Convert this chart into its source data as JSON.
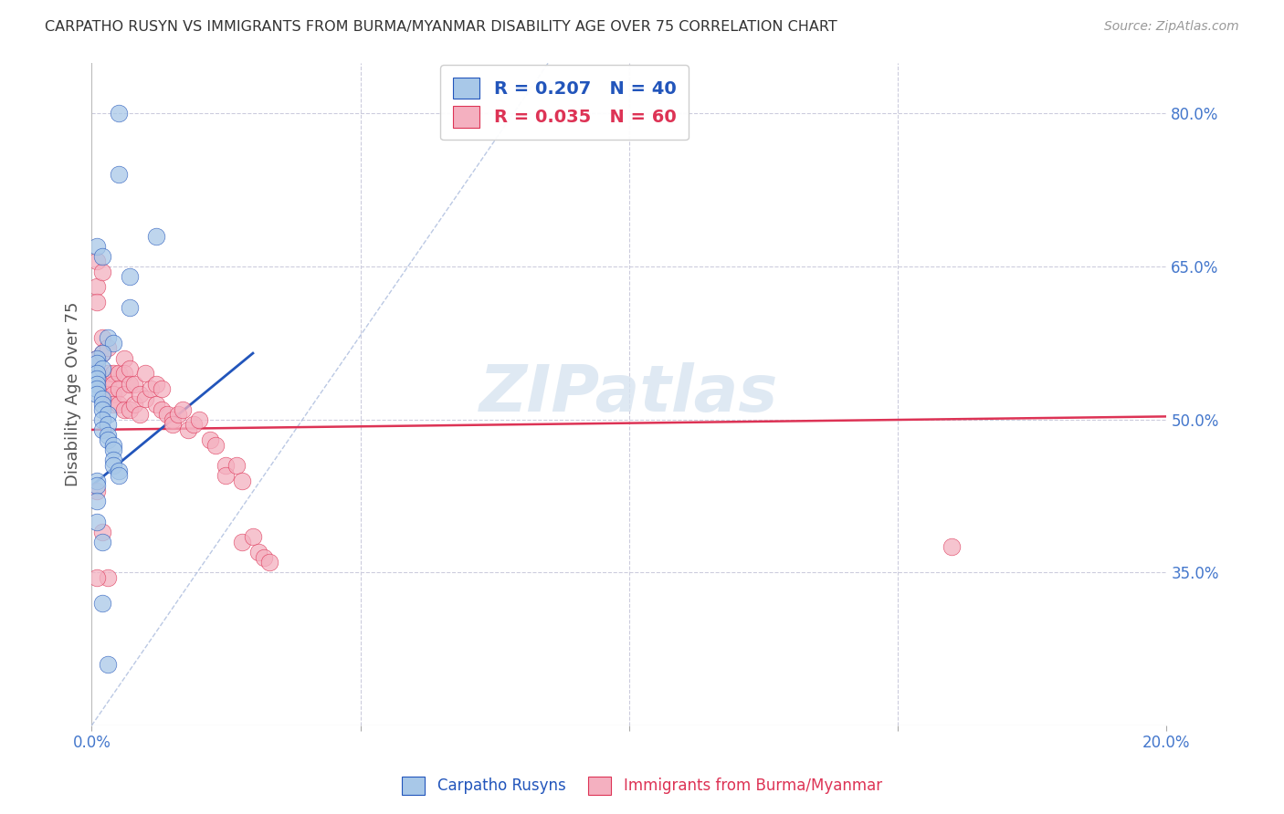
{
  "title": "CARPATHO RUSYN VS IMMIGRANTS FROM BURMA/MYANMAR DISABILITY AGE OVER 75 CORRELATION CHART",
  "source": "Source: ZipAtlas.com",
  "ylabel": "Disability Age Over 75",
  "xlim": [
    0.0,
    0.2
  ],
  "ylim": [
    0.2,
    0.85
  ],
  "yticks_right": [
    0.35,
    0.5,
    0.65,
    0.8
  ],
  "ytick_labels_right": [
    "35.0%",
    "50.0%",
    "65.0%",
    "80.0%"
  ],
  "legend_blue_r": "R = 0.207",
  "legend_blue_n": "N = 40",
  "legend_pink_r": "R = 0.035",
  "legend_pink_n": "N = 60",
  "legend_label_blue": "Carpatho Rusyns",
  "legend_label_pink": "Immigrants from Burma/Myanmar",
  "blue_scatter_color": "#a8c8e8",
  "pink_scatter_color": "#f4b0c0",
  "blue_line_color": "#2255bb",
  "pink_line_color": "#dd3355",
  "axis_color": "#4477cc",
  "title_color": "#333333",
  "background_color": "#ffffff",
  "grid_color": "#ccccdd",
  "watermark_color": "#d8e4f0",
  "scatter_blue_x": [
    0.005,
    0.005,
    0.012,
    0.001,
    0.002,
    0.007,
    0.007,
    0.003,
    0.004,
    0.002,
    0.001,
    0.001,
    0.002,
    0.001,
    0.001,
    0.001,
    0.001,
    0.001,
    0.002,
    0.002,
    0.002,
    0.003,
    0.002,
    0.003,
    0.002,
    0.003,
    0.003,
    0.004,
    0.004,
    0.004,
    0.004,
    0.005,
    0.005,
    0.001,
    0.001,
    0.001,
    0.001,
    0.002,
    0.002,
    0.003
  ],
  "scatter_blue_y": [
    0.8,
    0.74,
    0.68,
    0.67,
    0.66,
    0.64,
    0.61,
    0.58,
    0.575,
    0.565,
    0.56,
    0.555,
    0.55,
    0.545,
    0.54,
    0.535,
    0.53,
    0.525,
    0.52,
    0.515,
    0.51,
    0.505,
    0.5,
    0.495,
    0.49,
    0.485,
    0.48,
    0.475,
    0.47,
    0.46,
    0.455,
    0.45,
    0.445,
    0.44,
    0.435,
    0.42,
    0.4,
    0.38,
    0.32,
    0.26
  ],
  "scatter_pink_x": [
    0.001,
    0.001,
    0.001,
    0.001,
    0.002,
    0.002,
    0.002,
    0.003,
    0.003,
    0.003,
    0.003,
    0.004,
    0.004,
    0.004,
    0.004,
    0.005,
    0.005,
    0.005,
    0.006,
    0.006,
    0.006,
    0.006,
    0.007,
    0.007,
    0.007,
    0.008,
    0.008,
    0.009,
    0.009,
    0.01,
    0.01,
    0.011,
    0.012,
    0.012,
    0.013,
    0.013,
    0.014,
    0.015,
    0.015,
    0.016,
    0.017,
    0.018,
    0.019,
    0.02,
    0.022,
    0.023,
    0.025,
    0.025,
    0.027,
    0.028,
    0.028,
    0.03,
    0.031,
    0.032,
    0.033,
    0.001,
    0.002,
    0.003,
    0.16,
    0.001
  ],
  "scatter_pink_y": [
    0.655,
    0.63,
    0.615,
    0.56,
    0.645,
    0.58,
    0.565,
    0.57,
    0.545,
    0.535,
    0.525,
    0.545,
    0.535,
    0.525,
    0.515,
    0.545,
    0.53,
    0.515,
    0.56,
    0.545,
    0.525,
    0.51,
    0.55,
    0.535,
    0.51,
    0.535,
    0.515,
    0.525,
    0.505,
    0.545,
    0.52,
    0.53,
    0.535,
    0.515,
    0.53,
    0.51,
    0.505,
    0.5,
    0.495,
    0.505,
    0.51,
    0.49,
    0.495,
    0.5,
    0.48,
    0.475,
    0.455,
    0.445,
    0.455,
    0.44,
    0.38,
    0.385,
    0.37,
    0.365,
    0.36,
    0.43,
    0.39,
    0.345,
    0.375,
    0.345
  ],
  "blue_line_x": [
    0.0,
    0.03
  ],
  "blue_line_y": [
    0.435,
    0.565
  ],
  "pink_line_x": [
    0.0,
    0.2
  ],
  "pink_line_y": [
    0.49,
    0.503
  ],
  "ref_line_x": [
    0.0,
    0.085
  ],
  "ref_line_y": [
    0.2,
    0.85
  ]
}
